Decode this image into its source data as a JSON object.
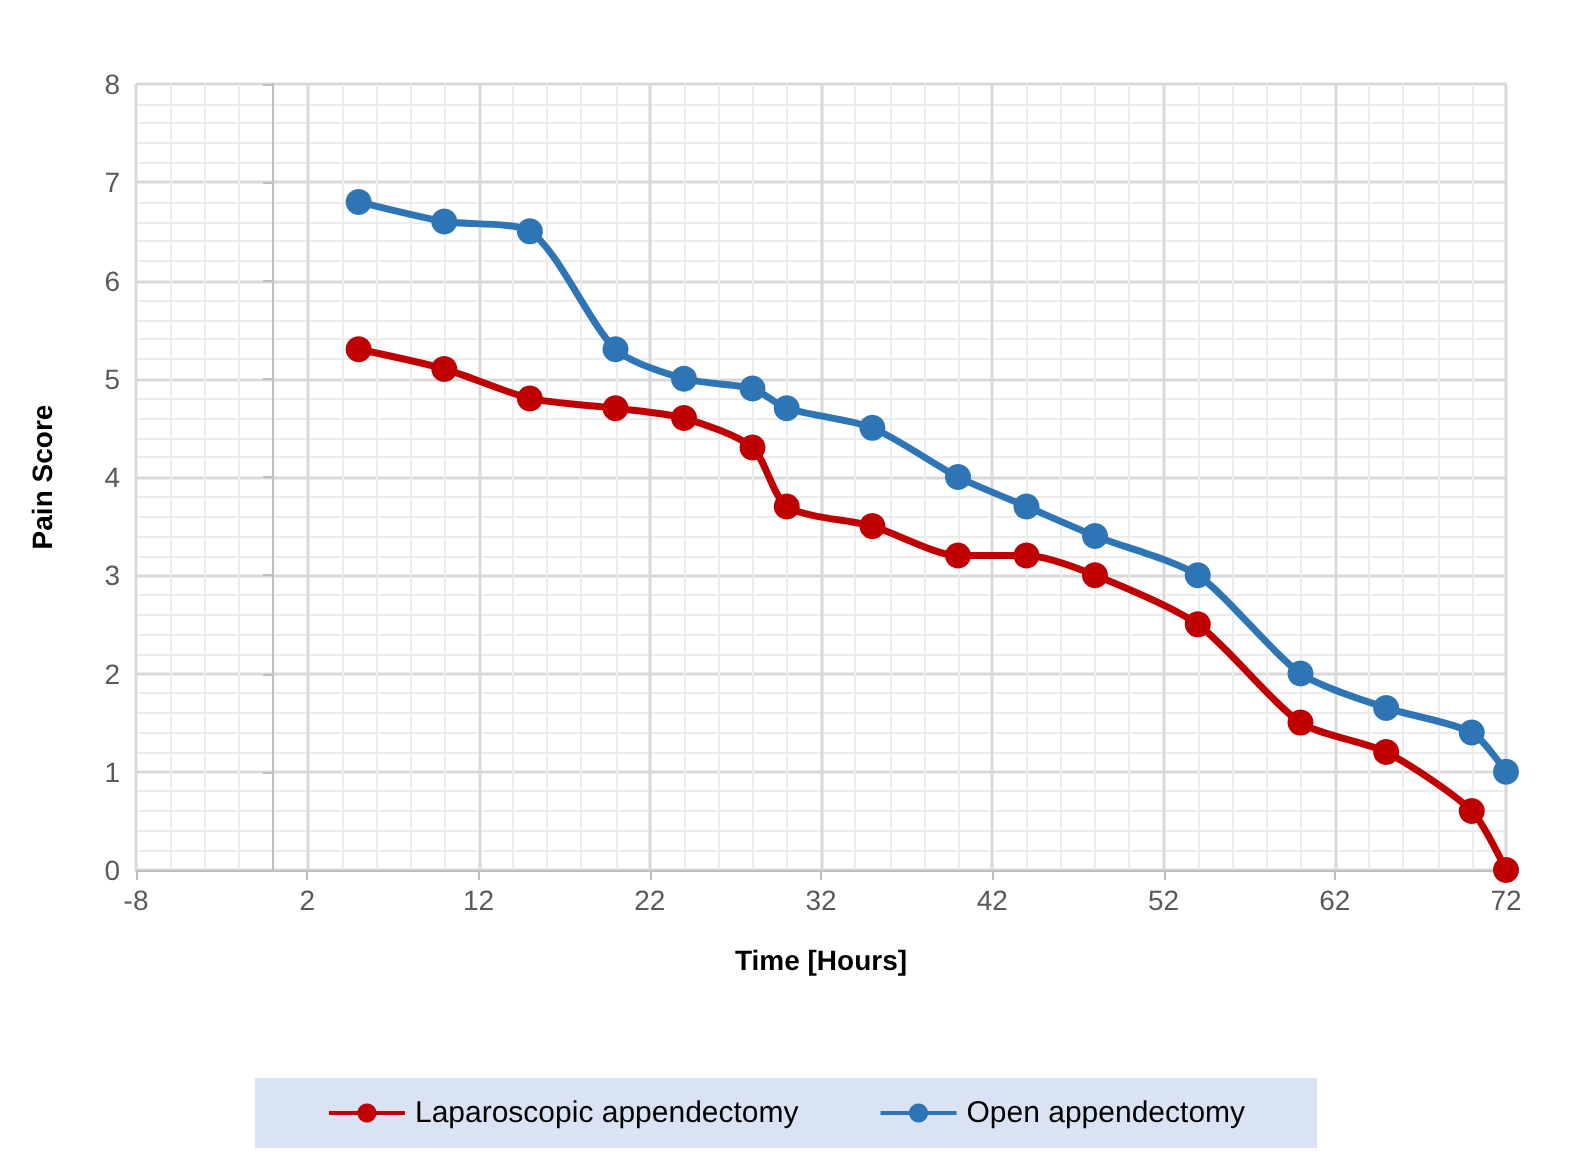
{
  "chart_data": {
    "type": "line",
    "xlabel": "Time [Hours]",
    "ylabel": "Pain Score",
    "x": [
      5,
      10,
      15,
      20,
      24,
      28,
      30,
      35,
      40,
      44,
      48,
      54,
      60,
      65,
      70,
      72
    ],
    "series": [
      {
        "name": "Laparoscopic appendectomy",
        "color": "#c00000",
        "values": [
          5.3,
          5.1,
          4.8,
          4.7,
          4.6,
          4.3,
          3.7,
          3.5,
          3.2,
          3.2,
          3.0,
          2.5,
          1.5,
          1.2,
          0.6,
          0
        ]
      },
      {
        "name": "Open appendectomy",
        "color": "#2e75b6",
        "values": [
          6.8,
          6.6,
          6.5,
          5.3,
          5.0,
          4.9,
          4.7,
          4.5,
          4.0,
          3.7,
          3.4,
          3.0,
          2.0,
          1.65,
          1.4,
          1.0
        ]
      }
    ],
    "xlim": [
      -8,
      72
    ],
    "xticks": [
      -8,
      2,
      12,
      22,
      32,
      42,
      52,
      62,
      72
    ],
    "ylim": [
      0,
      8
    ],
    "yticks": [
      0,
      1,
      2,
      3,
      4,
      5,
      6,
      7,
      8
    ],
    "grid": true,
    "legend": "bottom",
    "marker": "circle",
    "line_style": "solid"
  }
}
